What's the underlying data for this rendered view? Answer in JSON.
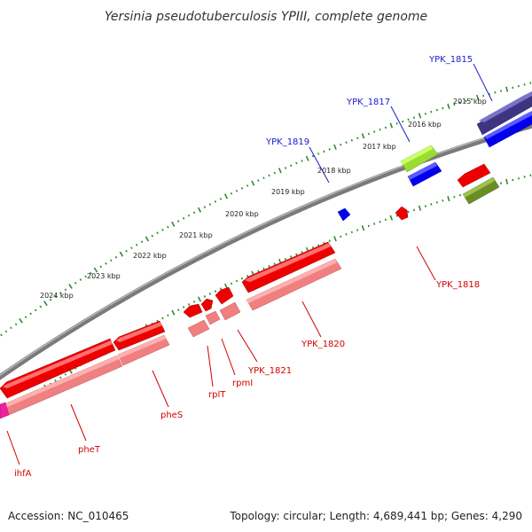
{
  "title": "Yersinia pseudotuberculosis YPIII, complete genome",
  "footer": {
    "accession": "Accession: NC_010465",
    "topology": "Topology: circular; Length: 4,689,441 bp; Genes: 4,290"
  },
  "kbp_labels": [
    "2015 kbp",
    "2016 kbp",
    "2017 kbp",
    "2018 kbp",
    "2019 kbp",
    "2020 kbp",
    "2021 kbp",
    "2022 kbp",
    "2023 kbp",
    "2024 kbp"
  ],
  "gene_labels": {
    "ypk1815": "YPK_1815",
    "ypk1817": "YPK_1817",
    "ypk1819": "YPK_1819",
    "ypk1818": "YPK_1818",
    "ypk1820": "YPK_1820",
    "ypk1821": "YPK_1821",
    "rpmI": "rpmI",
    "rplT": "rplT",
    "pheS": "pheS",
    "pheT": "pheT",
    "ihfA": "ihfA"
  },
  "colors": {
    "backbone": "#888888",
    "forward_cds": "#0000ee",
    "reverse_cds": "#ee0000",
    "reverse_rna": "#f08080",
    "tick": "#2e8b2e"
  }
}
